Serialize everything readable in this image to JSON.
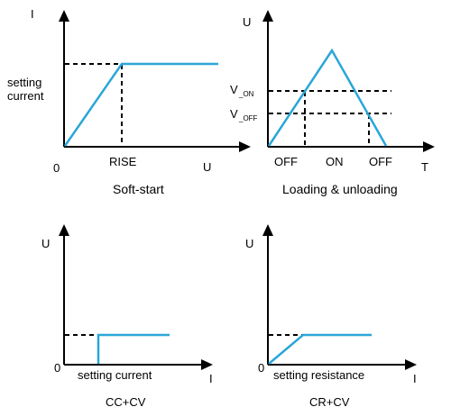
{
  "colors": {
    "curve": "#2aa6d8",
    "axis": "#000000"
  },
  "soft_start": {
    "caption": "Soft-start",
    "y_axis_label": "I",
    "x_axis_label": "U",
    "origin_label": "0",
    "level_label_line1": "setting",
    "level_label_line2": "current",
    "tick_label": "RISE"
  },
  "loading": {
    "caption": "Loading & unloading",
    "y_axis_label": "U",
    "x_axis_label": "T",
    "v_on_main": "V",
    "v_on_sub": "_ON",
    "v_off_main": "V",
    "v_off_sub": "_OFF",
    "tick_off_1": "OFF",
    "tick_on": "ON",
    "tick_off_2": "OFF"
  },
  "cc_cv": {
    "caption": "CC+CV",
    "y_axis_label": "U",
    "x_axis_label": "I",
    "origin_label": "0",
    "tick_label": "setting current"
  },
  "cr_cv": {
    "caption": "CR+CV",
    "y_axis_label": "U",
    "x_axis_label": "I",
    "origin_label": "0",
    "tick_label": "setting resistance"
  }
}
